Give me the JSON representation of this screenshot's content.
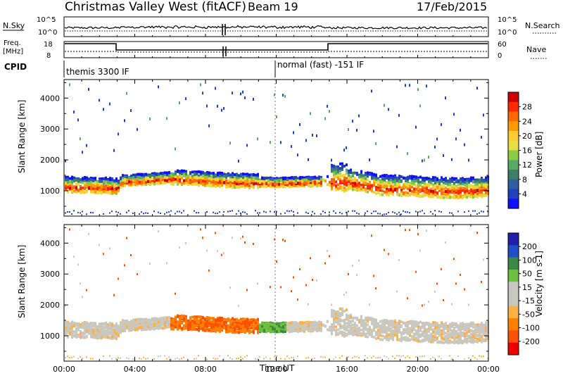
{
  "header": {
    "station": "Christmas Valley West (fitACF)",
    "beam": "Beam 19",
    "date": "17/Feb/2015"
  },
  "top_panels": {
    "nsky_label": "N.Sky",
    "nsearch_label": "N.Search",
    "noise_ticks_left": [
      "10^5",
      "10^0"
    ],
    "noise_ticks_right": [
      "10^5",
      "10^0"
    ],
    "freq_label_1": "Freq.",
    "freq_label_2": "[MHz]",
    "freq_ticks": [
      "18",
      "8"
    ],
    "nave_label": "Nave",
    "nave_ticks": [
      "60",
      "0"
    ],
    "cpid_label": "CPID",
    "cpid_segments": [
      {
        "label": "themis 3300 IF",
        "start_hour": 0
      },
      {
        "label": "normal (fast) -151 IF",
        "start_hour": 12
      }
    ]
  },
  "chart_data": [
    {
      "type": "heatmap",
      "name": "power",
      "xlabel": "",
      "ylabel": "Slant Range [km]",
      "xlim": [
        0,
        24
      ],
      "ylim": [
        180,
        4600
      ],
      "yticks": [
        1000,
        2000,
        3000,
        4000
      ],
      "colorbar": {
        "label": "Power [dB]",
        "ticks": [
          "28",
          "24",
          "20",
          "16",
          "12",
          "8",
          "4"
        ],
        "colors": [
          "#cc0000",
          "#ff2a00",
          "#ff6a00",
          "#ff9a00",
          "#ffcc33",
          "#e6dd44",
          "#8acc44",
          "#55aa66",
          "#3d7f6a",
          "#2f5fa0",
          "#2040c0",
          "#1010ff"
        ]
      },
      "features": [
        {
          "name": "main band",
          "x": [
            0,
            3,
            3.2,
            6,
            9,
            12,
            14.8,
            16,
            18,
            20,
            22,
            24
          ],
          "y_center": [
            1150,
            1100,
            1300,
            1400,
            1300,
            1250,
            1300,
            1300,
            1100,
            1050,
            1000,
            1050
          ]
        }
      ]
    },
    {
      "type": "heatmap",
      "name": "velocity",
      "xlabel": "Time UT",
      "ylabel": "Slant Range [km]",
      "xlim": [
        0,
        24
      ],
      "ylim": [
        180,
        4600
      ],
      "yticks": [
        1000,
        2000,
        3000,
        4000
      ],
      "xticks": [
        "00:00",
        "04:00",
        "08:00",
        "12:00",
        "16:00",
        "20:00",
        "00:00"
      ],
      "colorbar": {
        "label": "Velocity [m s-1]",
        "ticks": [
          "200",
          "100",
          "50",
          "15",
          "-15",
          "-50",
          "-100",
          "-200"
        ],
        "colors": [
          "#2020aa",
          "#2050c8",
          "#3a8a46",
          "#70c040",
          "#c8c8c0",
          "#c8c8c0",
          "#ffb040",
          "#ff8000",
          "#ff5000",
          "#ee0000"
        ]
      }
    }
  ]
}
